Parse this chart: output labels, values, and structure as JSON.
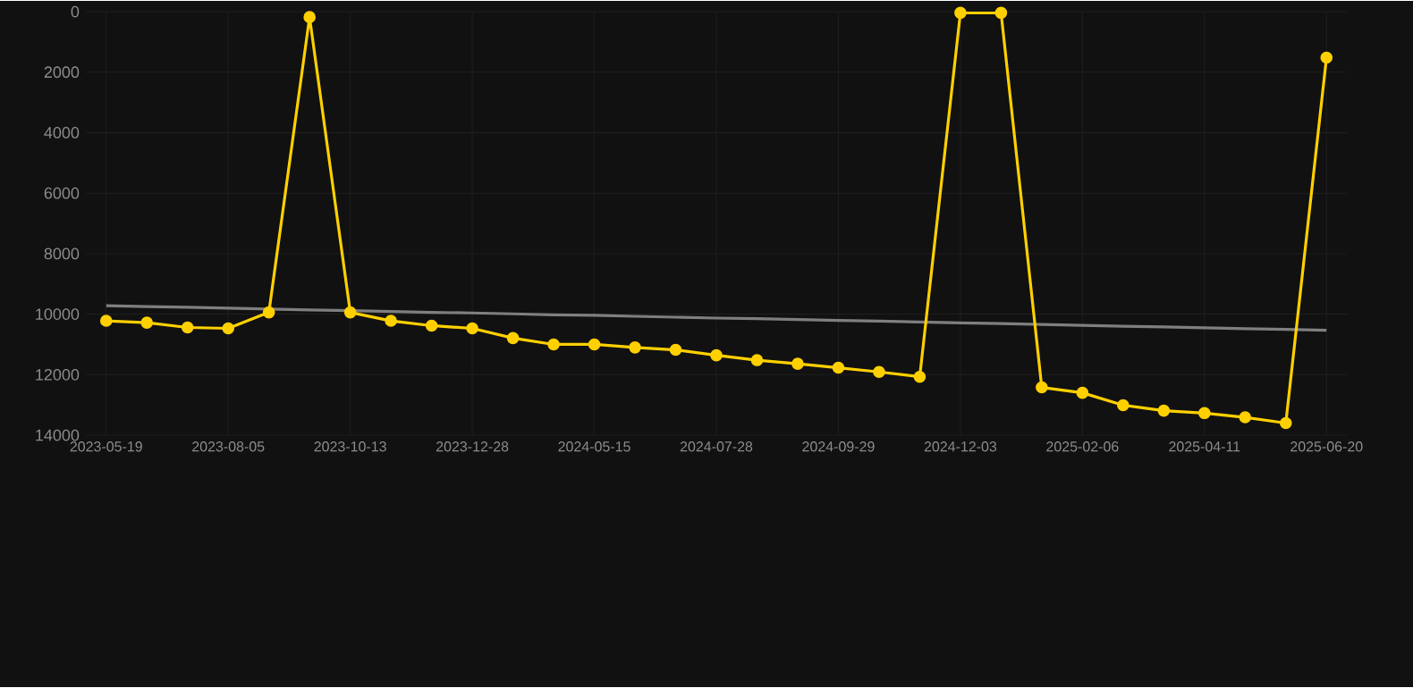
{
  "chart_data": {
    "type": "line",
    "categories": [
      "2023-05-19",
      null,
      null,
      "2023-08-05",
      null,
      null,
      "2023-10-13",
      null,
      null,
      "2023-12-28",
      null,
      null,
      "2024-05-15",
      null,
      null,
      "2024-07-28",
      null,
      null,
      "2024-09-29",
      null,
      null,
      "2024-12-03",
      null,
      null,
      "2025-02-06",
      null,
      null,
      "2025-04-11",
      null,
      null,
      "2025-06-20"
    ],
    "series": [
      {
        "color": "#ffd000",
        "marker": "circle",
        "values": [
          10220,
          10280,
          10440,
          10470,
          9940,
          180,
          9940,
          10220,
          10380,
          10470,
          10790,
          11000,
          11000,
          11100,
          11180,
          11360,
          11520,
          11640,
          11770,
          11910,
          12070,
          40,
          40,
          12420,
          12600,
          13010,
          13190,
          13270,
          13410,
          13600,
          1520
        ]
      },
      {
        "color": "#7f7f7f",
        "marker": "none",
        "values": [
          9720,
          9750,
          9770,
          9800,
          9830,
          9860,
          9880,
          9910,
          9940,
          9960,
          9990,
          10020,
          10040,
          10070,
          10100,
          10130,
          10150,
          10180,
          10210,
          10230,
          10260,
          10290,
          10310,
          10340,
          10370,
          10400,
          10420,
          10450,
          10480,
          10500,
          10530
        ]
      }
    ],
    "ylim": [
      14000,
      0
    ],
    "yticks": [
      0,
      2000,
      4000,
      6000,
      8000,
      10000,
      12000,
      14000
    ],
    "grid": true,
    "legend": false
  }
}
